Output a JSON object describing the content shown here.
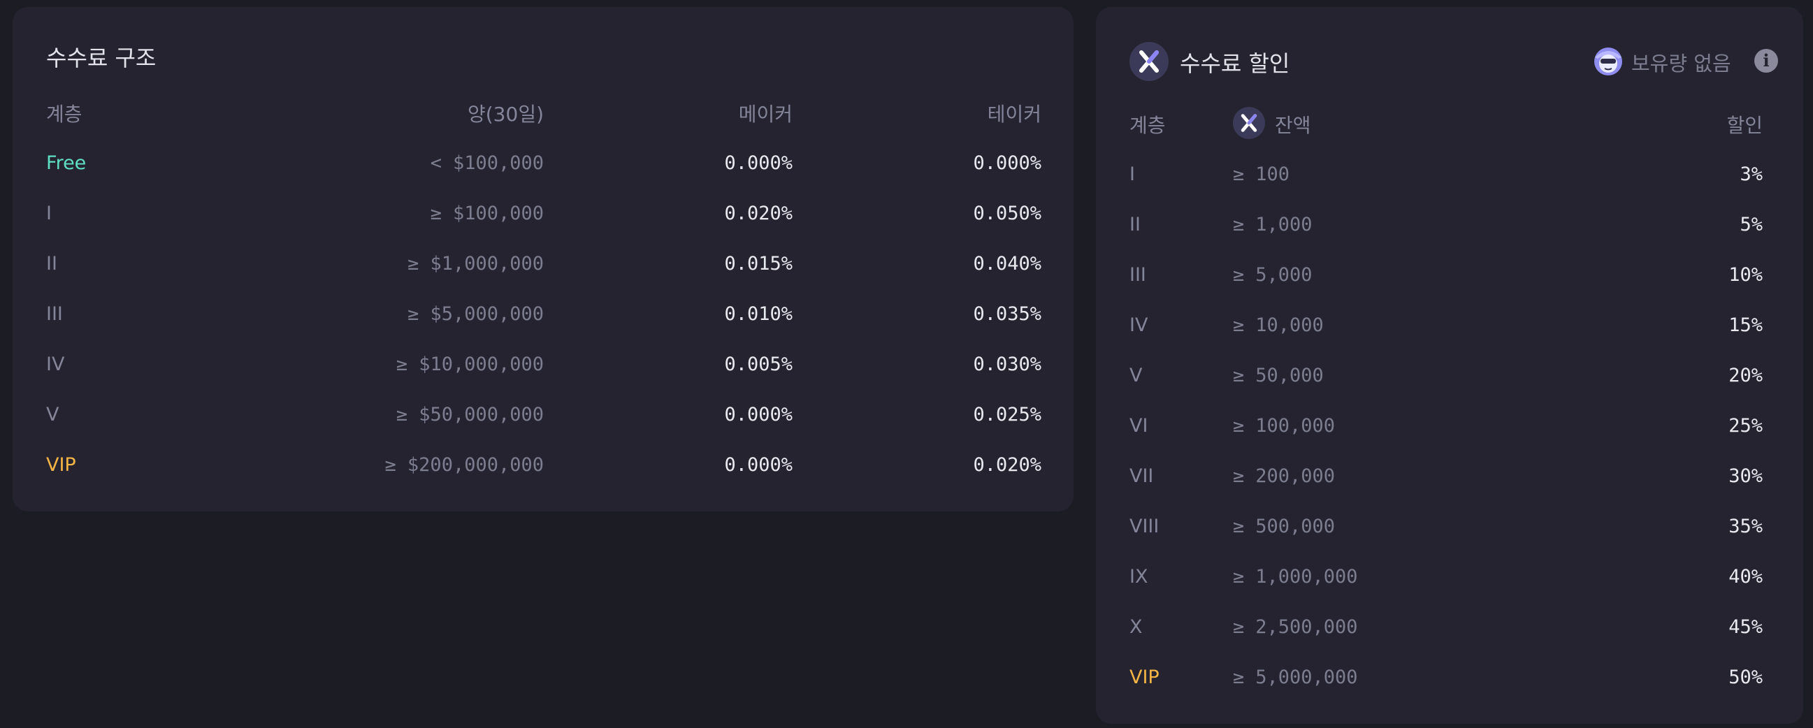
{
  "fee_structure": {
    "title": "수수료 구조",
    "headers": {
      "tier": "계층",
      "volume": "양(30일)",
      "maker": "메이커",
      "taker": "테이커"
    },
    "rows": [
      {
        "tier": "Free",
        "op": "<",
        "volume": "$100,000",
        "maker": "0.000%",
        "taker": "0.000%"
      },
      {
        "tier": "I",
        "op": "≥",
        "volume": "$100,000",
        "maker": "0.020%",
        "taker": "0.050%"
      },
      {
        "tier": "II",
        "op": "≥",
        "volume": "$1,000,000",
        "maker": "0.015%",
        "taker": "0.040%"
      },
      {
        "tier": "III",
        "op": "≥",
        "volume": "$5,000,000",
        "maker": "0.010%",
        "taker": "0.035%"
      },
      {
        "tier": "IV",
        "op": "≥",
        "volume": "$10,000,000",
        "maker": "0.005%",
        "taker": "0.030%"
      },
      {
        "tier": "V",
        "op": "≥",
        "volume": "$50,000,000",
        "maker": "0.000%",
        "taker": "0.025%"
      },
      {
        "tier": "VIP",
        "op": "≥",
        "volume": "$200,000,000",
        "maker": "0.000%",
        "taker": "0.020%"
      }
    ]
  },
  "fee_discount": {
    "title": "수수료 할인",
    "holdings_status": "보유량 없음",
    "icons": {
      "token": "x-token-icon",
      "mascot": "mascot-avatar-icon",
      "info": "info-icon"
    },
    "headers": {
      "tier": "계층",
      "balance": "잔액",
      "discount": "할인"
    },
    "rows": [
      {
        "tier": "I",
        "op": "≥",
        "balance": "100",
        "discount": "3%"
      },
      {
        "tier": "II",
        "op": "≥",
        "balance": "1,000",
        "discount": "5%"
      },
      {
        "tier": "III",
        "op": "≥",
        "balance": "5,000",
        "discount": "10%"
      },
      {
        "tier": "IV",
        "op": "≥",
        "balance": "10,000",
        "discount": "15%"
      },
      {
        "tier": "V",
        "op": "≥",
        "balance": "50,000",
        "discount": "20%"
      },
      {
        "tier": "VI",
        "op": "≥",
        "balance": "100,000",
        "discount": "25%"
      },
      {
        "tier": "VII",
        "op": "≥",
        "balance": "200,000",
        "discount": "30%"
      },
      {
        "tier": "VIII",
        "op": "≥",
        "balance": "500,000",
        "discount": "35%"
      },
      {
        "tier": "IX",
        "op": "≥",
        "balance": "1,000,000",
        "discount": "40%"
      },
      {
        "tier": "X",
        "op": "≥",
        "balance": "2,500,000",
        "discount": "45%"
      },
      {
        "tier": "VIP",
        "op": "≥",
        "balance": "5,000,000",
        "discount": "50%"
      }
    ]
  },
  "colors": {
    "free": "#5fe0c4",
    "vip": "#f5b545",
    "panel": "#24232f",
    "background": "#1c1c25"
  }
}
